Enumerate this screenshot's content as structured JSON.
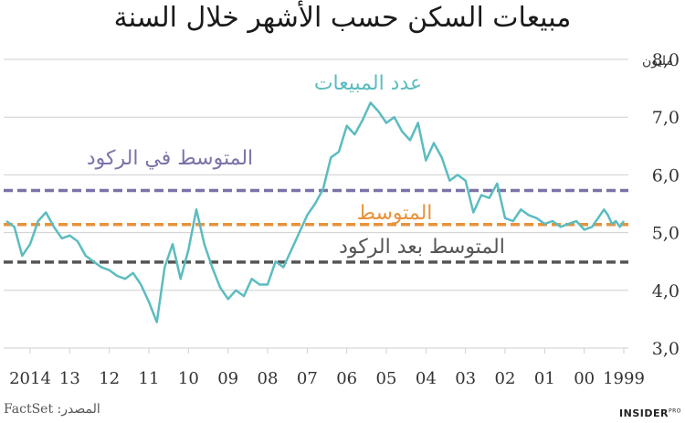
{
  "title": "مبيعات السكن حسب الأشهر خلال السنة",
  "source": "المصدر: FactSet",
  "brand": {
    "name": "INSIDER",
    "suffix": "PRO"
  },
  "colors": {
    "line": "#5bbcbf",
    "recession_avg": "#7b72a8",
    "overall_avg": "#e8923a",
    "post_recession_avg": "#555555",
    "grid": "#cfcfcf",
    "axis_text": "#333333"
  },
  "chart_data": {
    "type": "line",
    "title": "مبيعات السكن حسب الأشهر خلال السنة",
    "xlabel": "",
    "ylabel": "مليون",
    "ylim": [
      3.0,
      8.0
    ],
    "y_ticks": [
      "3,0",
      "4,0",
      "5,0",
      "6,0",
      "7,0",
      "8,0"
    ],
    "y_unit_label": "مليون",
    "x_ticks": [
      "2014",
      "13",
      "12",
      "11",
      "10",
      "09",
      "08",
      "07",
      "06",
      "05",
      "04",
      "03",
      "02",
      "01",
      "00",
      "1999"
    ],
    "x_direction": "right-to-left",
    "grid": true,
    "series": [
      {
        "name": "عدد المبيعات",
        "label": "عدد المبيعات",
        "x": [
          1999.0,
          1999.1,
          1999.2,
          1999.3,
          1999.4,
          1999.5,
          1999.6,
          1999.8,
          2000.0,
          2000.2,
          2000.4,
          2000.6,
          2000.8,
          2001.0,
          2001.2,
          2001.4,
          2001.6,
          2001.8,
          2002.0,
          2002.2,
          2002.4,
          2002.6,
          2002.8,
          2003.0,
          2003.2,
          2003.4,
          2003.6,
          2003.8,
          2004.0,
          2004.2,
          2004.4,
          2004.6,
          2004.8,
          2005.0,
          2005.2,
          2005.4,
          2005.6,
          2005.8,
          2006.0,
          2006.2,
          2006.4,
          2006.6,
          2006.8,
          2007.0,
          2007.2,
          2007.4,
          2007.6,
          2007.8,
          2008.0,
          2008.2,
          2008.4,
          2008.6,
          2008.8,
          2009.0,
          2009.2,
          2009.4,
          2009.6,
          2009.8,
          2010.0,
          2010.2,
          2010.4,
          2010.6,
          2010.8,
          2011.0,
          2011.2,
          2011.4,
          2011.6,
          2011.8,
          2012.0,
          2012.2,
          2012.4,
          2012.6,
          2012.8,
          2013.0,
          2013.2,
          2013.4,
          2013.6,
          2013.8,
          2014.0,
          2014.2,
          2014.4,
          2014.6
        ],
        "values": [
          5.2,
          5.1,
          5.2,
          5.15,
          5.3,
          5.4,
          5.3,
          5.1,
          5.05,
          5.2,
          5.15,
          5.1,
          5.2,
          5.15,
          5.25,
          5.3,
          5.4,
          5.2,
          5.25,
          5.85,
          5.6,
          5.65,
          5.35,
          5.9,
          6.0,
          5.9,
          6.3,
          6.55,
          6.25,
          6.9,
          6.6,
          6.75,
          7.0,
          6.9,
          7.1,
          7.25,
          6.95,
          6.7,
          6.85,
          6.4,
          6.3,
          5.75,
          5.5,
          5.3,
          5.0,
          4.7,
          4.4,
          4.5,
          4.1,
          4.1,
          4.2,
          3.9,
          4.0,
          3.85,
          4.05,
          4.4,
          4.8,
          5.4,
          4.7,
          4.2,
          4.8,
          4.4,
          3.45,
          3.8,
          4.1,
          4.3,
          4.2,
          4.25,
          4.35,
          4.4,
          4.5,
          4.6,
          4.85,
          4.95,
          4.9,
          5.1,
          5.35,
          5.2,
          4.8,
          4.6,
          5.1,
          5.2
        ]
      }
    ],
    "reference_lines": [
      {
        "name": "المتوسط في الركود",
        "label": "المتوسط في الركود",
        "value": 5.73,
        "style": "dashed",
        "color": "#7b72a8"
      },
      {
        "name": "المتوسط",
        "label": "المتوسط",
        "value": 5.14,
        "style": "dashed",
        "color": "#e8923a"
      },
      {
        "name": "المتوسط بعد الركود",
        "label": "المتوسط بعد الركود",
        "value": 4.49,
        "style": "dashed",
        "color": "#555555"
      }
    ]
  }
}
